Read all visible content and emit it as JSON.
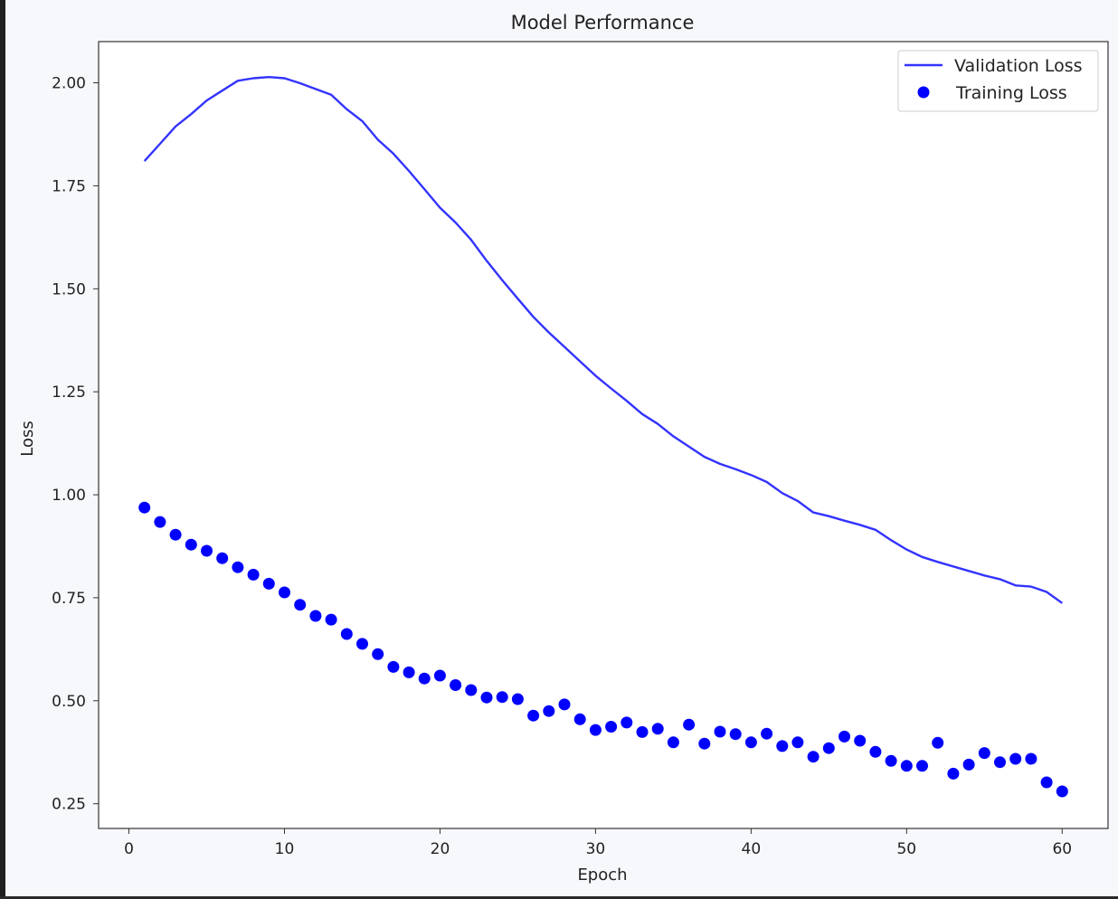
{
  "chart_data": {
    "type": "line",
    "title": "Model Performance",
    "xlabel": "Epoch",
    "ylabel": "Loss",
    "xlim": [
      -1.95,
      62.95
    ],
    "ylim": [
      0.19,
      2.1
    ],
    "xticks": [
      0,
      10,
      20,
      30,
      40,
      50,
      60
    ],
    "xtick_labels": [
      "0",
      "10",
      "20",
      "30",
      "40",
      "50",
      "60"
    ],
    "yticks": [
      0.25,
      0.5,
      0.75,
      1.0,
      1.25,
      1.5,
      1.75,
      2.0
    ],
    "ytick_labels": [
      "0.25",
      "0.50",
      "0.75",
      "1.00",
      "1.25",
      "1.50",
      "1.75",
      "2.00"
    ],
    "grid": false,
    "legend_position": "upper right",
    "colors": {
      "series": "#0000ff",
      "line": "#3333ff"
    },
    "series": [
      {
        "name": "Validation Loss",
        "style": "line",
        "x": [
          1,
          2,
          3,
          4,
          5,
          6,
          7,
          8,
          9,
          10,
          11,
          12,
          13,
          14,
          15,
          16,
          17,
          18,
          19,
          20,
          21,
          22,
          23,
          24,
          25,
          26,
          27,
          28,
          29,
          30,
          31,
          32,
          33,
          34,
          35,
          36,
          37,
          38,
          39,
          40,
          41,
          42,
          43,
          44,
          45,
          46,
          47,
          48,
          49,
          50,
          51,
          52,
          53,
          54,
          55,
          56,
          57,
          58,
          59,
          60
        ],
        "y": [
          1.81,
          1.852,
          1.894,
          1.924,
          1.957,
          1.981,
          2.005,
          2.011,
          2.014,
          2.011,
          1.999,
          1.985,
          1.971,
          1.936,
          1.907,
          1.862,
          1.828,
          1.786,
          1.742,
          1.697,
          1.661,
          1.619,
          1.568,
          1.521,
          1.476,
          1.432,
          1.394,
          1.359,
          1.324,
          1.289,
          1.258,
          1.228,
          1.196,
          1.172,
          1.142,
          1.117,
          1.092,
          1.075,
          1.062,
          1.048,
          1.031,
          1.004,
          0.985,
          0.957,
          0.948,
          0.937,
          0.927,
          0.915,
          0.89,
          0.867,
          0.849,
          0.837,
          0.826,
          0.815,
          0.804,
          0.795,
          0.78,
          0.777,
          0.764,
          0.737
        ]
      },
      {
        "name": "Training Loss",
        "style": "scatter",
        "x": [
          1,
          2,
          3,
          4,
          5,
          6,
          7,
          8,
          9,
          10,
          11,
          12,
          13,
          14,
          15,
          16,
          17,
          18,
          19,
          20,
          21,
          22,
          23,
          24,
          25,
          26,
          27,
          28,
          29,
          30,
          31,
          32,
          33,
          34,
          35,
          36,
          37,
          38,
          39,
          40,
          41,
          42,
          43,
          44,
          45,
          46,
          47,
          48,
          49,
          50,
          51,
          52,
          53,
          54,
          55,
          56,
          57,
          58,
          59,
          60
        ],
        "y": [
          0.969,
          0.934,
          0.903,
          0.879,
          0.864,
          0.846,
          0.824,
          0.806,
          0.784,
          0.763,
          0.733,
          0.706,
          0.697,
          0.662,
          0.638,
          0.613,
          0.582,
          0.569,
          0.554,
          0.561,
          0.538,
          0.526,
          0.508,
          0.509,
          0.504,
          0.464,
          0.475,
          0.491,
          0.455,
          0.429,
          0.437,
          0.447,
          0.424,
          0.432,
          0.399,
          0.442,
          0.396,
          0.425,
          0.419,
          0.399,
          0.42,
          0.39,
          0.399,
          0.364,
          0.385,
          0.413,
          0.403,
          0.376,
          0.354,
          0.342,
          0.342,
          0.398,
          0.323,
          0.345,
          0.373,
          0.351,
          0.359,
          0.359,
          0.302,
          0.28
        ]
      }
    ]
  }
}
